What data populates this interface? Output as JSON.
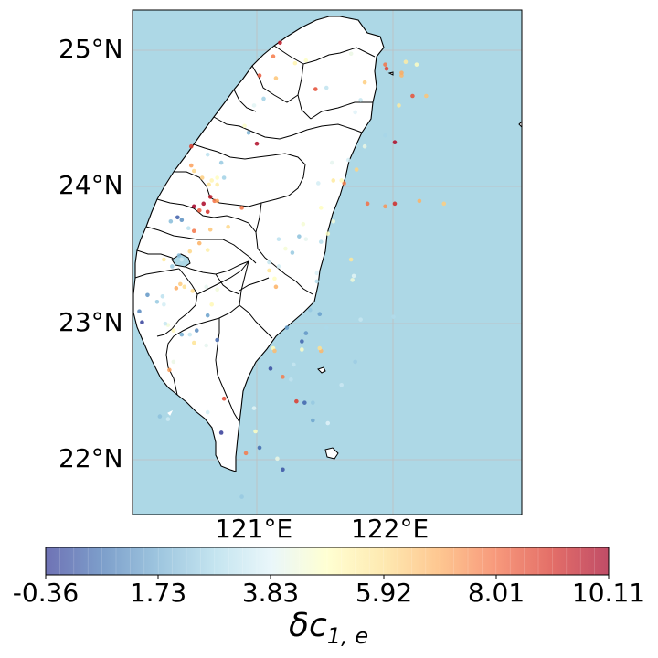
{
  "lat_ticks": [
    "25°N",
    "24°N",
    "23°N",
    "22°N"
  ],
  "lon_ticks": [
    "121°E",
    "122°E"
  ],
  "colorbar": {
    "ticks": [
      "-0.36",
      "1.73",
      "3.83",
      "5.92",
      "8.01",
      "10.11"
    ],
    "label_symbol": "δc",
    "label_subscript": "1, e",
    "range": [
      -0.36,
      10.11
    ],
    "colormap": "RdYlBu_r"
  },
  "colors": {
    "ocean": "#add8e6",
    "land": "#ffffff",
    "border": "#000000",
    "grid": "#bfbfbf"
  },
  "chart_data": {
    "type": "scatter",
    "title": "",
    "xlabel": "",
    "ylabel": "",
    "xlim": [
      120.0,
      122.85
    ],
    "ylim": [
      21.6,
      25.3
    ],
    "points": [
      [
        121.08,
        25.06,
        9.6
      ],
      [
        121.03,
        24.96,
        7.8
      ],
      [
        120.93,
        24.82,
        8.4
      ],
      [
        121.05,
        24.8,
        6.5
      ],
      [
        121.19,
        24.91,
        5.2
      ],
      [
        121.27,
        24.93,
        4.8
      ],
      [
        121.34,
        24.72,
        8.6
      ],
      [
        121.42,
        24.73,
        3.2
      ],
      [
        120.96,
        24.65,
        2.6
      ],
      [
        120.89,
        24.6,
        3.9
      ],
      [
        120.82,
        24.45,
        4.7
      ],
      [
        120.85,
        24.4,
        1.9
      ],
      [
        120.91,
        24.32,
        9.9
      ],
      [
        120.65,
        24.18,
        2.4
      ],
      [
        120.67,
        24.07,
        2.6
      ],
      [
        120.43,
        24.3,
        8.8
      ],
      [
        120.55,
        24.24,
        3.1
      ],
      [
        120.43,
        24.16,
        7.2
      ],
      [
        120.45,
        24.12,
        6.1
      ],
      [
        120.62,
        24.02,
        5.5
      ],
      [
        120.56,
        24.02,
        5.8
      ],
      [
        120.58,
        24.05,
        5.2
      ],
      [
        120.62,
        24.07,
        4.9
      ],
      [
        120.51,
        24.07,
        6.3
      ],
      [
        121.36,
        24.03,
        3.6
      ],
      [
        121.38,
        23.85,
        4.9
      ],
      [
        121.25,
        23.73,
        4.5
      ],
      [
        121.72,
        23.88,
        8.0
      ],
      [
        121.85,
        23.86,
        7.4
      ],
      [
        121.92,
        23.88,
        9.2
      ],
      [
        122.1,
        23.9,
        6.9
      ],
      [
        122.28,
        23.88,
        6.3
      ],
      [
        120.57,
        23.93,
        9.6
      ],
      [
        120.52,
        23.88,
        10.0
      ],
      [
        120.45,
        23.86,
        10.1
      ],
      [
        120.6,
        23.9,
        8.0
      ],
      [
        120.62,
        23.9,
        7.2
      ],
      [
        120.55,
        23.82,
        9.1
      ],
      [
        120.49,
        23.83,
        8.4
      ],
      [
        120.36,
        23.76,
        1.2
      ],
      [
        120.33,
        23.78,
        0.3
      ],
      [
        120.28,
        23.75,
        2.1
      ],
      [
        120.41,
        23.7,
        3.1
      ],
      [
        120.45,
        23.68,
        7.9
      ],
      [
        120.57,
        23.69,
        6.5
      ],
      [
        120.49,
        23.59,
        6.9
      ],
      [
        120.55,
        23.54,
        5.4
      ],
      [
        120.42,
        23.53,
        6.1
      ],
      [
        120.34,
        23.5,
        2.1
      ],
      [
        120.36,
        23.47,
        3.5
      ],
      [
        120.23,
        23.47,
        5.6
      ],
      [
        120.29,
        23.42,
        2.5
      ],
      [
        120.35,
        23.29,
        6.4
      ],
      [
        120.32,
        23.26,
        7.0
      ],
      [
        120.38,
        23.27,
        5.9
      ],
      [
        120.44,
        23.24,
        6.0
      ],
      [
        120.54,
        23.27,
        4.0
      ],
      [
        120.62,
        23.25,
        4.4
      ],
      [
        120.58,
        23.14,
        5.1
      ],
      [
        120.22,
        23.2,
        3.1
      ],
      [
        120.11,
        23.21,
        1.3
      ],
      [
        120.18,
        23.16,
        2.4
      ],
      [
        120.23,
        23.14,
        3.6
      ],
      [
        120.26,
        22.99,
        4.4
      ],
      [
        120.05,
        23.09,
        1.0
      ],
      [
        120.07,
        23.01,
        -0.2
      ],
      [
        120.24,
        23.0,
        3.3
      ],
      [
        120.3,
        22.95,
        5.1
      ],
      [
        120.36,
        22.92,
        1.7
      ],
      [
        120.42,
        22.92,
        3.3
      ],
      [
        120.47,
        22.95,
        1.1
      ],
      [
        120.55,
        23.06,
        1.5
      ],
      [
        120.45,
        22.86,
        5.8
      ],
      [
        120.54,
        22.84,
        4.0
      ],
      [
        120.62,
        22.88,
        0.4
      ],
      [
        121.05,
        23.27,
        6.9
      ],
      [
        121.04,
        23.33,
        4.9
      ],
      [
        121.0,
        23.39,
        5.8
      ],
      [
        121.07,
        23.42,
        3.6
      ],
      [
        121.17,
        23.52,
        2.4
      ],
      [
        121.27,
        23.62,
        4.0
      ],
      [
        121.22,
        23.64,
        2.2
      ],
      [
        121.07,
        23.62,
        3.1
      ],
      [
        121.12,
        23.55,
        4.5
      ],
      [
        121.0,
        23.45,
        3.3
      ],
      [
        121.35,
        23.37,
        3.7
      ],
      [
        121.35,
        23.31,
        2.9
      ],
      [
        121.3,
        23.1,
        2.4
      ],
      [
        121.37,
        23.07,
        1.5
      ],
      [
        121.42,
        22.97,
        2.8
      ],
      [
        121.27,
        22.93,
        1.3
      ],
      [
        121.13,
        22.97,
        1.5
      ],
      [
        121.03,
        22.82,
        4.9
      ],
      [
        121.04,
        22.8,
        6.7
      ],
      [
        121.24,
        22.87,
        0.4
      ],
      [
        121.24,
        22.81,
        4.7
      ],
      [
        121.01,
        22.67,
        0.0
      ],
      [
        121.1,
        22.61,
        7.8
      ],
      [
        121.2,
        22.43,
        8.9
      ],
      [
        121.26,
        22.42,
        0.4
      ],
      [
        121.16,
        22.59,
        3.2
      ],
      [
        121.18,
        22.7,
        3.3
      ],
      [
        120.89,
        22.38,
        3.9
      ],
      [
        120.67,
        22.45,
        8.6
      ],
      [
        120.9,
        22.21,
        4.8
      ],
      [
        120.93,
        22.09,
        0.5
      ],
      [
        121.06,
        22.01,
        4.2
      ],
      [
        121.1,
        21.93,
        0.1
      ],
      [
        120.83,
        22.05,
        7.8
      ],
      [
        120.8,
        21.73,
        2.4
      ],
      [
        120.65,
        22.2,
        -0.3
      ],
      [
        120.55,
        22.35,
        3.6
      ],
      [
        120.27,
        22.66,
        7.2
      ],
      [
        120.3,
        22.72,
        4.2
      ],
      [
        120.2,
        22.32,
        2.2
      ],
      [
        120.26,
        22.3,
        3.5
      ],
      [
        121.91,
        23.05,
        2.9
      ],
      [
        121.67,
        23.03,
        3.3
      ],
      [
        121.62,
        23.35,
        3.9
      ],
      [
        121.61,
        23.32,
        4.4
      ],
      [
        121.6,
        23.47,
        5.7
      ],
      [
        121.47,
        23.75,
        4.4
      ],
      [
        121.43,
        23.66,
        4.8
      ],
      [
        121.38,
        23.6,
        3.0
      ],
      [
        121.55,
        24.03,
        7.7
      ],
      [
        121.53,
        24.05,
        5.0
      ],
      [
        121.47,
        24.05,
        5.6
      ],
      [
        121.46,
        24.18,
        4.0
      ],
      [
        121.58,
        24.2,
        3.6
      ],
      [
        121.64,
        24.13,
        6.2
      ],
      [
        121.7,
        24.3,
        4.2
      ],
      [
        121.92,
        24.33,
        9.9
      ],
      [
        121.85,
        24.38,
        2.7
      ],
      [
        121.95,
        24.6,
        5.6
      ],
      [
        121.63,
        24.55,
        3.8
      ],
      [
        122.15,
        24.67,
        6.5
      ],
      [
        122.05,
        24.67,
        8.5
      ],
      [
        121.97,
        24.82,
        6.8
      ],
      [
        122.0,
        24.92,
        5.5
      ],
      [
        122.08,
        24.9,
        4.8
      ],
      [
        121.85,
        24.9,
        7.9
      ],
      [
        121.86,
        24.87,
        8.8
      ],
      [
        121.97,
        24.84,
        7.0
      ],
      [
        121.7,
        24.77,
        6.3
      ],
      [
        121.67,
        24.64,
        3.3
      ],
      [
        121.6,
        24.98,
        4.2
      ],
      [
        120.8,
        23.85,
        7.9
      ],
      [
        120.7,
        23.71,
        6.1
      ],
      [
        121.53,
        22.55,
        3.4
      ],
      [
        121.63,
        22.72,
        2.5
      ],
      [
        121.38,
        22.8,
        6.8
      ],
      [
        121.37,
        22.82,
        5.9
      ],
      [
        121.43,
        22.27,
        3.8
      ],
      [
        121.32,
        22.29,
        1.6
      ],
      [
        121.32,
        22.42,
        2.4
      ]
    ]
  }
}
